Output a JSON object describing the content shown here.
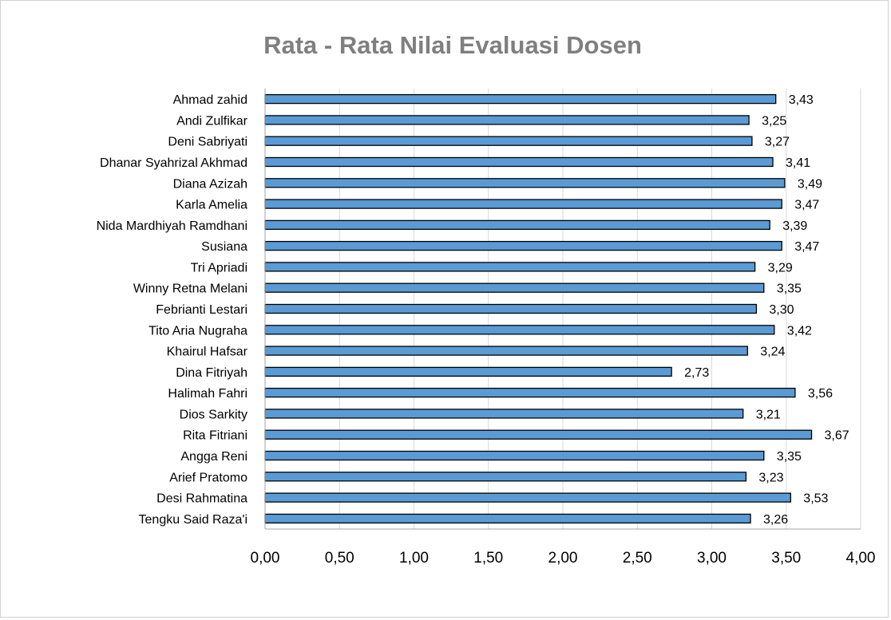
{
  "chart_data": {
    "type": "bar",
    "orientation": "horizontal",
    "title": "Rata - Rata  Nilai Evaluasi Dosen",
    "categories": [
      "Ahmad zahid",
      "Andi Zulfikar",
      "Deni Sabriyati",
      "Dhanar Syahrizal Akhmad",
      "Diana Azizah",
      "Karla Amelia",
      "Nida Mardhiyah Ramdhani",
      "Susiana",
      "Tri Apriadi",
      "Winny Retna Melani",
      "Febrianti Lestari",
      "Tito Aria Nugraha",
      "Khairul Hafsar",
      "Dina Fitriyah",
      "Halimah Fahri",
      "Dios Sarkity",
      "Rita Fitriani",
      "Angga Reni",
      "Arief Pratomo",
      "Desi Rahmatina",
      "Tengku Said Raza'i"
    ],
    "values": [
      3.43,
      3.25,
      3.27,
      3.41,
      3.49,
      3.47,
      3.39,
      3.47,
      3.29,
      3.35,
      3.3,
      3.42,
      3.24,
      2.73,
      3.56,
      3.21,
      3.67,
      3.35,
      3.23,
      3.53,
      3.26
    ],
    "value_labels": [
      "3,43",
      "3,25",
      "3,27",
      "3,41",
      "3,49",
      "3,47",
      "3,39",
      "3,47",
      "3,29",
      "3,35",
      "3,30",
      "3,42",
      "3,24",
      "2,73",
      "3,56",
      "3,21",
      "3,67",
      "3,35",
      "3,23",
      "3,53",
      "3,26"
    ],
    "xlim": [
      0,
      4
    ],
    "x_ticks": [
      0,
      0.5,
      1,
      1.5,
      2,
      2.5,
      3,
      3.5,
      4
    ],
    "x_tick_labels": [
      "0,00",
      "0,50",
      "1,00",
      "1,50",
      "2,00",
      "2,50",
      "3,00",
      "3,50",
      "4,00"
    ],
    "grid": true,
    "legend": "none",
    "colors": {
      "bar_fill": "#5b9bd5",
      "bar_stroke": "#000000",
      "grid": "#d9d9d9",
      "title": "#7f7f7f"
    }
  }
}
